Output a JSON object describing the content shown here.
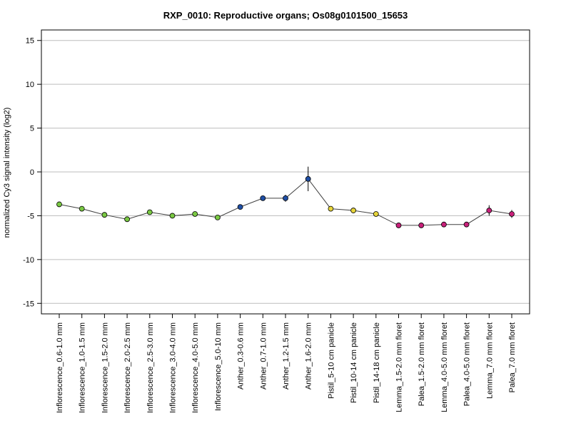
{
  "chart_data": {
    "type": "line",
    "title": "RXP_0010: Reproductive organs; Os08g0101500_15653",
    "ylabel": "normalized Cy3 signal intensity (log2)",
    "xlabel": "",
    "ylim": [
      -16.2,
      16.2
    ],
    "yticks": [
      -15,
      -10,
      -5,
      0,
      5,
      10,
      15
    ],
    "grid": true,
    "categories": [
      "Inflorescence_0.6-1.0 mm",
      "Inflorescence_1.0-1.5 mm",
      "Inflorescence_1.5-2.0 mm",
      "Inflorescence_2.0-2.5 mm",
      "Inflorescence_2.5-3.0 mm",
      "Inflorescence_3.0-4.0 mm",
      "Inflorescence_4.0-5.0 mm",
      "Inflorescence_5.0-10 mm",
      "Anther_0.3-0.6 mm",
      "Anther_0.7-1.0 mm",
      "Anther_1.2-1.5 mm",
      "Anther_1.6-2.0 mm",
      "Pistil_5-10 cm panicle",
      "Pistil_10-14 cm panicle",
      "Pistil_14-18 cm panicle",
      "Lemma_1.5-2.0 mm floret",
      "Palea_1.5-2.0 mm floret",
      "Lemma_4.0-5.0 mm floret",
      "Palea_4.0-5.0 mm floret",
      "Lemma_7.0 mm floret",
      "Palea_7.0 mm floret"
    ],
    "values": [
      -3.7,
      -4.2,
      -4.9,
      -5.4,
      -4.6,
      -5.0,
      -4.8,
      -5.2,
      -4.0,
      -3.0,
      -3.0,
      -0.8,
      -4.2,
      -4.4,
      -4.8,
      -6.1,
      -6.1,
      -6.0,
      -6.0,
      -4.4,
      -4.8
    ],
    "error": [
      0.1,
      0.1,
      0.1,
      0.2,
      0.1,
      0.25,
      0.1,
      0.1,
      0.15,
      0.15,
      0.4,
      1.4,
      0.1,
      0.3,
      0.1,
      0.1,
      0.1,
      0.25,
      0.15,
      0.6,
      0.45
    ],
    "point_colors": [
      "#7ac943",
      "#7ac943",
      "#7ac943",
      "#7ac943",
      "#7ac943",
      "#7ac943",
      "#7ac943",
      "#7ac943",
      "#1f4fa6",
      "#1f4fa6",
      "#1f4fa6",
      "#1f4fa6",
      "#e6d43a",
      "#e6d43a",
      "#e6d43a",
      "#c8207a",
      "#c8207a",
      "#c8207a",
      "#c8207a",
      "#c8207a",
      "#c8207a"
    ],
    "line_color": "#404040"
  }
}
